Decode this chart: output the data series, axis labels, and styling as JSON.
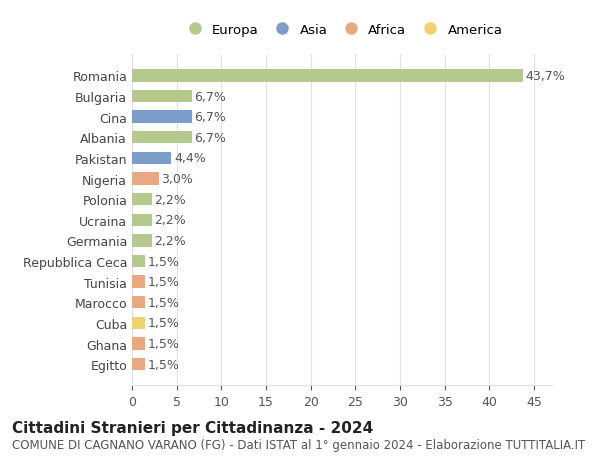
{
  "categories": [
    "Egitto",
    "Ghana",
    "Cuba",
    "Marocco",
    "Tunisia",
    "Repubblica Ceca",
    "Germania",
    "Ucraina",
    "Polonia",
    "Nigeria",
    "Pakistan",
    "Albania",
    "Cina",
    "Bulgaria",
    "Romania"
  ],
  "values": [
    1.5,
    1.5,
    1.5,
    1.5,
    1.5,
    1.5,
    2.2,
    2.2,
    2.2,
    3.0,
    4.4,
    6.7,
    6.7,
    6.7,
    43.7
  ],
  "labels": [
    "1,5%",
    "1,5%",
    "1,5%",
    "1,5%",
    "1,5%",
    "1,5%",
    "2,2%",
    "2,2%",
    "2,2%",
    "3,0%",
    "4,4%",
    "6,7%",
    "6,7%",
    "6,7%",
    "43,7%"
  ],
  "bar_colors": [
    "#e8a882",
    "#e8a882",
    "#f0d070",
    "#e8a882",
    "#e8a882",
    "#b5c98e",
    "#b5c98e",
    "#b5c98e",
    "#b5c98e",
    "#e8a882",
    "#7b9dc7",
    "#b5c98e",
    "#7b9dc7",
    "#b5c98e",
    "#b5c98e"
  ],
  "title": "Cittadini Stranieri per Cittadinanza - 2024",
  "subtitle": "COMUNE DI CAGNANO VARANO (FG) - Dati ISTAT al 1° gennaio 2024 - Elaborazione TUTTITALIA.IT",
  "xlim": [
    0,
    47
  ],
  "xticks": [
    0,
    5,
    10,
    15,
    20,
    25,
    30,
    35,
    40,
    45
  ],
  "legend_labels": [
    "Europa",
    "Asia",
    "Africa",
    "America"
  ],
  "legend_colors": [
    "#b5c98e",
    "#7b9dc7",
    "#e8a882",
    "#f0d070"
  ],
  "background_color": "#ffffff",
  "grid_color": "#e0e0e0",
  "label_fontsize": 9,
  "title_fontsize": 11,
  "subtitle_fontsize": 8.5,
  "bar_height": 0.6
}
